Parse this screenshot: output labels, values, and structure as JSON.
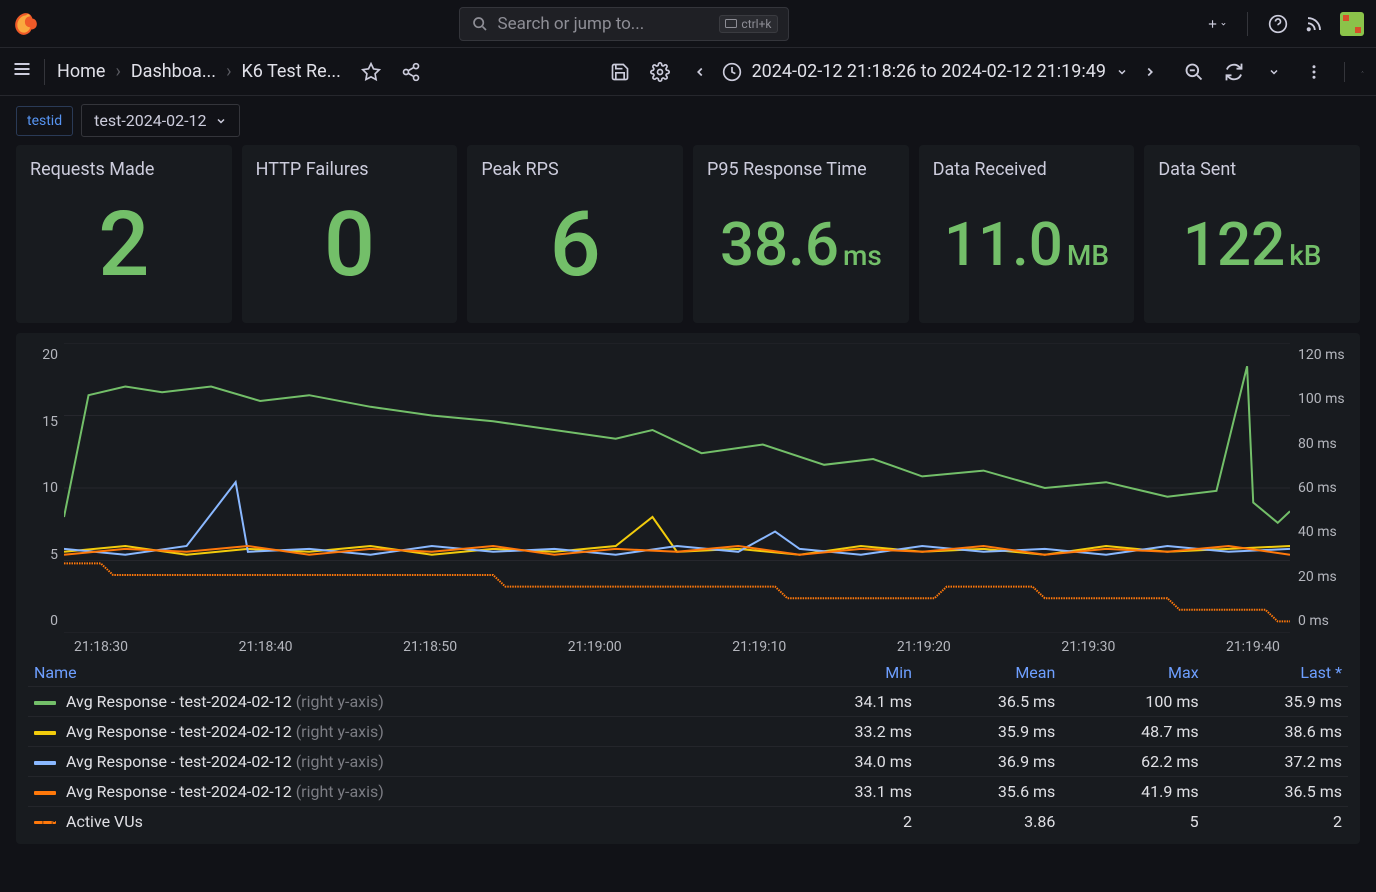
{
  "topbar": {
    "search_placeholder": "Search or jump to...",
    "shortcut": "ctrl+k"
  },
  "breadcrumbs": [
    "Home",
    "Dashboa...",
    "K6 Test Re..."
  ],
  "time_range": "2024-02-12 21:18:26 to 2024-02-12 21:19:49",
  "variable": {
    "label": "testid",
    "value": "test-2024-02-12"
  },
  "stats": [
    {
      "title": "Requests Made",
      "value": "2",
      "unit": ""
    },
    {
      "title": "HTTP Failures",
      "value": "0",
      "unit": ""
    },
    {
      "title": "Peak RPS",
      "value": "6",
      "unit": ""
    },
    {
      "title": "P95 Response Time",
      "value": "38.6",
      "unit": "ms"
    },
    {
      "title": "Data Received",
      "value": "11.0",
      "unit": "MB"
    },
    {
      "title": "Data Sent",
      "value": "122",
      "unit": "kB"
    }
  ],
  "stat_color": "#73bf69",
  "chart": {
    "type": "line",
    "grid_color": "#2b2d33",
    "background_color": "#181b1f",
    "y_left": {
      "lim": [
        0,
        20
      ],
      "ticks": [
        "20",
        "15",
        "10",
        "5",
        "0"
      ]
    },
    "y_right": {
      "lim": [
        0,
        120
      ],
      "ticks": [
        "120 ms",
        "100 ms",
        "80 ms",
        "60 ms",
        "40 ms",
        "20 ms",
        "0 ms"
      ]
    },
    "x_ticks": [
      "21:18:30",
      "21:18:40",
      "21:18:50",
      "21:19:00",
      "21:19:10",
      "21:19:20",
      "21:19:30",
      "21:19:40"
    ],
    "series": [
      {
        "name": "Avg Response - test-2024-02-12",
        "axis_note": "(right y-axis)",
        "color": "#73bf69",
        "dashed": false,
        "stats": {
          "min": "34.1 ms",
          "mean": "36.5 ms",
          "max": "100 ms",
          "last": "35.9 ms"
        },
        "points": [
          [
            0,
            60
          ],
          [
            2,
            18
          ],
          [
            5,
            15
          ],
          [
            8,
            17
          ],
          [
            12,
            15
          ],
          [
            16,
            20
          ],
          [
            20,
            18
          ],
          [
            25,
            22
          ],
          [
            30,
            25
          ],
          [
            35,
            27
          ],
          [
            40,
            30
          ],
          [
            45,
            33
          ],
          [
            48,
            30
          ],
          [
            52,
            38
          ],
          [
            57,
            35
          ],
          [
            62,
            42
          ],
          [
            66,
            40
          ],
          [
            70,
            46
          ],
          [
            75,
            44
          ],
          [
            80,
            50
          ],
          [
            85,
            48
          ],
          [
            90,
            53
          ],
          [
            94,
            51
          ],
          [
            96.5,
            8
          ],
          [
            97,
            55
          ],
          [
            99,
            62
          ],
          [
            100,
            58
          ]
        ]
      },
      {
        "name": "Avg Response - test-2024-02-12",
        "axis_note": "(right y-axis)",
        "color": "#f2cc0c",
        "dashed": false,
        "stats": {
          "min": "33.2 ms",
          "mean": "35.9 ms",
          "max": "48.7 ms",
          "last": "38.6 ms"
        },
        "points": [
          [
            0,
            72
          ],
          [
            5,
            70
          ],
          [
            10,
            73
          ],
          [
            15,
            71
          ],
          [
            20,
            72
          ],
          [
            25,
            70
          ],
          [
            30,
            73
          ],
          [
            35,
            71
          ],
          [
            40,
            72
          ],
          [
            45,
            70
          ],
          [
            48,
            60
          ],
          [
            50,
            72
          ],
          [
            55,
            71
          ],
          [
            60,
            73
          ],
          [
            65,
            70
          ],
          [
            70,
            72
          ],
          [
            75,
            71
          ],
          [
            80,
            73
          ],
          [
            85,
            70
          ],
          [
            90,
            72
          ],
          [
            95,
            71
          ],
          [
            100,
            70
          ]
        ]
      },
      {
        "name": "Avg Response - test-2024-02-12",
        "axis_note": "(right y-axis)",
        "color": "#8ab8ff",
        "dashed": false,
        "stats": {
          "min": "34.0 ms",
          "mean": "36.9 ms",
          "max": "62.2 ms",
          "last": "37.2 ms"
        },
        "points": [
          [
            0,
            71
          ],
          [
            5,
            73
          ],
          [
            10,
            70
          ],
          [
            14,
            48
          ],
          [
            15,
            72
          ],
          [
            20,
            71
          ],
          [
            25,
            73
          ],
          [
            30,
            70
          ],
          [
            35,
            72
          ],
          [
            40,
            71
          ],
          [
            45,
            73
          ],
          [
            50,
            70
          ],
          [
            55,
            72
          ],
          [
            58,
            65
          ],
          [
            60,
            71
          ],
          [
            65,
            73
          ],
          [
            70,
            70
          ],
          [
            75,
            72
          ],
          [
            80,
            71
          ],
          [
            85,
            73
          ],
          [
            90,
            70
          ],
          [
            95,
            72
          ],
          [
            100,
            71
          ]
        ]
      },
      {
        "name": "Avg Response - test-2024-02-12",
        "axis_note": "(right y-axis)",
        "color": "#ff780a",
        "dashed": false,
        "stats": {
          "min": "33.1 ms",
          "mean": "35.6 ms",
          "max": "41.9 ms",
          "last": "36.5 ms"
        },
        "points": [
          [
            0,
            73
          ],
          [
            5,
            71
          ],
          [
            10,
            72
          ],
          [
            15,
            70
          ],
          [
            20,
            73
          ],
          [
            25,
            71
          ],
          [
            30,
            72
          ],
          [
            35,
            70
          ],
          [
            40,
            73
          ],
          [
            45,
            71
          ],
          [
            50,
            72
          ],
          [
            55,
            70
          ],
          [
            60,
            73
          ],
          [
            65,
            71
          ],
          [
            70,
            72
          ],
          [
            75,
            70
          ],
          [
            80,
            73
          ],
          [
            85,
            71
          ],
          [
            90,
            72
          ],
          [
            95,
            70
          ],
          [
            100,
            73
          ]
        ]
      },
      {
        "name": "Active VUs",
        "axis_note": "",
        "color": "#ff780a",
        "dashed": true,
        "stats": {
          "min": "2",
          "mean": "3.86",
          "max": "5",
          "last": "2"
        },
        "points": [
          [
            0,
            76
          ],
          [
            3,
            76
          ],
          [
            4,
            80
          ],
          [
            10,
            80
          ],
          [
            11,
            80
          ],
          [
            35,
            80
          ],
          [
            36,
            84
          ],
          [
            58,
            84
          ],
          [
            59,
            88
          ],
          [
            71,
            88
          ],
          [
            72,
            84
          ],
          [
            79,
            84
          ],
          [
            80,
            88
          ],
          [
            90,
            88
          ],
          [
            91,
            92
          ],
          [
            98,
            92
          ],
          [
            99,
            96
          ],
          [
            100,
            96
          ]
        ]
      }
    ],
    "legend_headers": [
      "Name",
      "Min",
      "Mean",
      "Max",
      "Last *"
    ]
  }
}
